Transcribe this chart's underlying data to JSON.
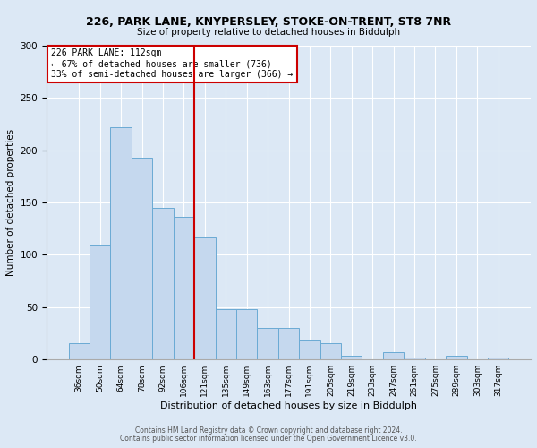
{
  "title1": "226, PARK LANE, KNYPERSLEY, STOKE-ON-TRENT, ST8 7NR",
  "title2": "Size of property relative to detached houses in Biddulph",
  "xlabel": "Distribution of detached houses by size in Biddulph",
  "ylabel": "Number of detached properties",
  "categories": [
    "36sqm",
    "50sqm",
    "64sqm",
    "78sqm",
    "92sqm",
    "106sqm",
    "121sqm",
    "135sqm",
    "149sqm",
    "163sqm",
    "177sqm",
    "191sqm",
    "205sqm",
    "219sqm",
    "233sqm",
    "247sqm",
    "261sqm",
    "275sqm",
    "289sqm",
    "303sqm",
    "317sqm"
  ],
  "values": [
    16,
    110,
    222,
    193,
    145,
    136,
    117,
    48,
    48,
    30,
    30,
    18,
    16,
    4,
    0,
    7,
    2,
    0,
    4,
    0,
    2
  ],
  "bar_color": "#c5d8ee",
  "bar_edge_color": "#6aaad4",
  "vline_x_idx": 6,
  "vline_color": "#cc0000",
  "box_text": "226 PARK LANE: 112sqm\n← 67% of detached houses are smaller (736)\n33% of semi-detached houses are larger (366) →",
  "box_color": "#cc0000",
  "box_bg": "#ffffff",
  "footer1": "Contains HM Land Registry data © Crown copyright and database right 2024.",
  "footer2": "Contains public sector information licensed under the Open Government Licence v3.0.",
  "bg_color": "#dce8f5",
  "plot_bg": "#dce8f5",
  "ylim": [
    0,
    300
  ],
  "yticks": [
    0,
    50,
    100,
    150,
    200,
    250,
    300
  ]
}
